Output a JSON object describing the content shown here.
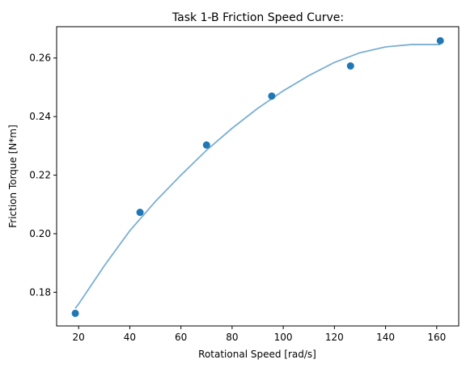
{
  "chart_data": {
    "type": "scatter",
    "title": "Task 1-B Friction Speed Curve:",
    "xlabel": "Rotational Speed [rad/s]",
    "ylabel": "Friction Torque [N*m]",
    "xlim": [
      11.4,
      168.6
    ],
    "ylim": [
      0.1685,
      0.2707
    ],
    "xticks": [
      20,
      40,
      60,
      80,
      100,
      120,
      140,
      160
    ],
    "yticks": [
      0.18,
      0.2,
      0.22,
      0.24,
      0.26
    ],
    "ytick_labels": [
      "0.18",
      "0.20",
      "0.22",
      "0.24",
      "0.26"
    ],
    "grid": false,
    "series": [
      {
        "kind": "points",
        "color": "#1f77b4",
        "x": [
          18.7,
          44.0,
          70.0,
          95.5,
          126.3,
          161.4
        ],
        "y": [
          0.1728,
          0.2073,
          0.2303,
          0.247,
          0.2573,
          0.2659
        ]
      },
      {
        "kind": "fit-curve",
        "color": "#7bafd4",
        "x": [
          18.7,
          20,
          30,
          40,
          50,
          60,
          70,
          80,
          90,
          100,
          110,
          120,
          130,
          140,
          150,
          160,
          161.4
        ],
        "y": [
          0.1745,
          0.176,
          0.189,
          0.201,
          0.211,
          0.22,
          0.2285,
          0.236,
          0.2428,
          0.2488,
          0.254,
          0.2585,
          0.2618,
          0.2638,
          0.2646,
          0.2646,
          0.2646
        ]
      }
    ]
  }
}
